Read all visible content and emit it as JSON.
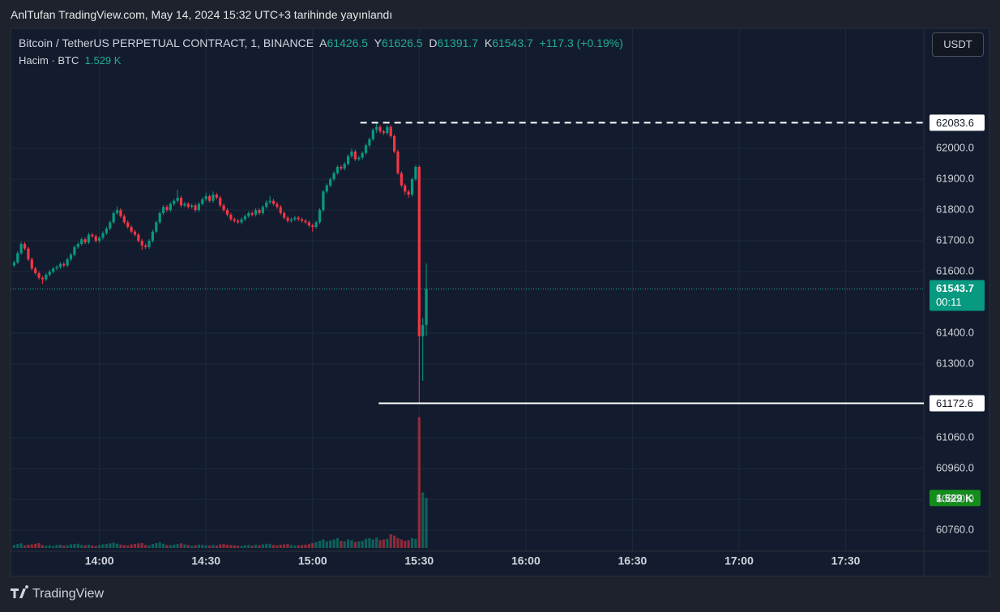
{
  "chart_data": {
    "type": "candlestick",
    "publisher_line": "AnlTufan TradingView.com, May 14, 2024 15:32 UTC+3 tarihinde yayınlandı",
    "title": "Bitcoin / TetherUS PERPETUAL CONTRACT, 1, BINANCE",
    "ohlc_letters": [
      "A",
      "Y",
      "D",
      "K"
    ],
    "change": "+117.3 (+0.19%)",
    "volume_title": "Hacim · BTC",
    "volume_last_label": "1.529 K",
    "currency": "USDT",
    "countdown": "00:11",
    "brand": "TradingView",
    "up_color": "#089981",
    "down_color": "#f23645",
    "x": [
      "13:36",
      "13:37",
      "13:38",
      "13:39",
      "13:40",
      "13:41",
      "13:42",
      "13:43",
      "13:44",
      "13:45",
      "13:46",
      "13:47",
      "13:48",
      "13:49",
      "13:50",
      "13:51",
      "13:52",
      "13:53",
      "13:54",
      "13:55",
      "13:56",
      "13:57",
      "13:58",
      "13:59",
      "14:00",
      "14:01",
      "14:02",
      "14:03",
      "14:04",
      "14:05",
      "14:06",
      "14:07",
      "14:08",
      "14:09",
      "14:10",
      "14:11",
      "14:12",
      "14:13",
      "14:14",
      "14:15",
      "14:16",
      "14:17",
      "14:18",
      "14:19",
      "14:20",
      "14:21",
      "14:22",
      "14:23",
      "14:24",
      "14:25",
      "14:26",
      "14:27",
      "14:28",
      "14:29",
      "14:30",
      "14:31",
      "14:32",
      "14:33",
      "14:34",
      "14:35",
      "14:36",
      "14:37",
      "14:38",
      "14:39",
      "14:40",
      "14:41",
      "14:42",
      "14:43",
      "14:44",
      "14:45",
      "14:46",
      "14:47",
      "14:48",
      "14:49",
      "14:50",
      "14:51",
      "14:52",
      "14:53",
      "14:54",
      "14:55",
      "14:56",
      "14:57",
      "14:58",
      "14:59",
      "15:00",
      "15:01",
      "15:02",
      "15:03",
      "15:04",
      "15:05",
      "15:06",
      "15:07",
      "15:08",
      "15:09",
      "15:10",
      "15:11",
      "15:12",
      "15:13",
      "15:14",
      "15:15",
      "15:16",
      "15:17",
      "15:18",
      "15:19",
      "15:20",
      "15:21",
      "15:22",
      "15:23",
      "15:24",
      "15:25",
      "15:26",
      "15:27",
      "15:28",
      "15:29",
      "15:30",
      "15:31",
      "15:32"
    ],
    "ohlc": [
      [
        61620,
        61636,
        61614,
        61630
      ],
      [
        61630,
        61666,
        61624,
        61660
      ],
      [
        61660,
        61696,
        61654,
        61690
      ],
      [
        61690,
        61696,
        61669,
        61675
      ],
      [
        61675,
        61681,
        61634,
        61640
      ],
      [
        61640,
        61646,
        61604,
        61610
      ],
      [
        61610,
        61616,
        61589,
        61595
      ],
      [
        61595,
        61601,
        61574,
        61580
      ],
      [
        61580,
        61586,
        61560,
        61575
      ],
      [
        61575,
        61596,
        61569,
        61590
      ],
      [
        61590,
        61606,
        61584,
        61600
      ],
      [
        61600,
        61616,
        61594,
        61610
      ],
      [
        61610,
        61621,
        61604,
        61615
      ],
      [
        61615,
        61631,
        61609,
        61625
      ],
      [
        61625,
        61631,
        61614,
        61620
      ],
      [
        61620,
        61646,
        61614,
        61640
      ],
      [
        61640,
        61661,
        61634,
        61655
      ],
      [
        61655,
        61686,
        61649,
        61680
      ],
      [
        61680,
        61696,
        61674,
        61690
      ],
      [
        61690,
        61711,
        61684,
        61705
      ],
      [
        61705,
        61711,
        61689,
        61695
      ],
      [
        61695,
        61726,
        61689,
        61720
      ],
      [
        61720,
        61726,
        61709,
        61715
      ],
      [
        61715,
        61721,
        61694,
        61700
      ],
      [
        61700,
        61716,
        61694,
        61710
      ],
      [
        61710,
        61731,
        61704,
        61725
      ],
      [
        61725,
        61746,
        61719,
        61740
      ],
      [
        61740,
        61766,
        61734,
        61760
      ],
      [
        61760,
        61796,
        61754,
        61790
      ],
      [
        61790,
        61812,
        61784,
        61800
      ],
      [
        61800,
        61806,
        61774,
        61780
      ],
      [
        61780,
        61786,
        61754,
        61760
      ],
      [
        61760,
        61766,
        61739,
        61745
      ],
      [
        61745,
        61751,
        61724,
        61730
      ],
      [
        61730,
        61736,
        61714,
        61720
      ],
      [
        61720,
        61726,
        61694,
        61700
      ],
      [
        61700,
        61706,
        61670,
        61685
      ],
      [
        61685,
        61691,
        61674,
        61680
      ],
      [
        61680,
        61706,
        61674,
        61700
      ],
      [
        61700,
        61736,
        61694,
        61730
      ],
      [
        61730,
        61766,
        61724,
        61760
      ],
      [
        61760,
        61796,
        61754,
        61790
      ],
      [
        61790,
        61816,
        61784,
        61810
      ],
      [
        61810,
        61816,
        61794,
        61800
      ],
      [
        61800,
        61826,
        61794,
        61820
      ],
      [
        61820,
        61836,
        61814,
        61830
      ],
      [
        61830,
        61866,
        61824,
        61840
      ],
      [
        61840,
        61846,
        61809,
        61815
      ],
      [
        61815,
        61826,
        61809,
        61820
      ],
      [
        61820,
        61826,
        61804,
        61810
      ],
      [
        61810,
        61821,
        61804,
        61815
      ],
      [
        61815,
        61821,
        61794,
        61800
      ],
      [
        61800,
        61826,
        61794,
        61820
      ],
      [
        61820,
        61841,
        61814,
        61835
      ],
      [
        61835,
        61856,
        61829,
        61845
      ],
      [
        61845,
        61851,
        61824,
        61830
      ],
      [
        61830,
        61860,
        61824,
        61850
      ],
      [
        61850,
        61856,
        61834,
        61840
      ],
      [
        61840,
        61846,
        61809,
        61815
      ],
      [
        61815,
        61821,
        61794,
        61800
      ],
      [
        61800,
        61806,
        61779,
        61785
      ],
      [
        61785,
        61791,
        61764,
        61770
      ],
      [
        61770,
        61776,
        61759,
        61765
      ],
      [
        61765,
        61771,
        61754,
        61760
      ],
      [
        61760,
        61776,
        61754,
        61770
      ],
      [
        61770,
        61786,
        61764,
        61780
      ],
      [
        61780,
        61796,
        61774,
        61790
      ],
      [
        61790,
        61796,
        61779,
        61785
      ],
      [
        61785,
        61806,
        61779,
        61800
      ],
      [
        61800,
        61806,
        61784,
        61790
      ],
      [
        61790,
        61816,
        61784,
        61810
      ],
      [
        61810,
        61831,
        61804,
        61825
      ],
      [
        61825,
        61846,
        61819,
        61830
      ],
      [
        61830,
        61836,
        61814,
        61820
      ],
      [
        61820,
        61826,
        61804,
        61810
      ],
      [
        61810,
        61816,
        61784,
        61790
      ],
      [
        61790,
        61796,
        61769,
        61775
      ],
      [
        61775,
        61781,
        61759,
        61765
      ],
      [
        61765,
        61776,
        61759,
        61770
      ],
      [
        61770,
        61781,
        61764,
        61775
      ],
      [
        61775,
        61781,
        61764,
        61770
      ],
      [
        61770,
        61776,
        61759,
        61765
      ],
      [
        61765,
        61771,
        61754,
        61760
      ],
      [
        61760,
        61766,
        61744,
        61750
      ],
      [
        61750,
        61756,
        61730,
        61745
      ],
      [
        61745,
        61766,
        61739,
        61760
      ],
      [
        61760,
        61806,
        61754,
        61800
      ],
      [
        61800,
        61866,
        61794,
        61860
      ],
      [
        61860,
        61886,
        61854,
        61880
      ],
      [
        61880,
        61906,
        61874,
        61900
      ],
      [
        61900,
        61926,
        61894,
        61920
      ],
      [
        61920,
        61946,
        61914,
        61940
      ],
      [
        61940,
        61946,
        61929,
        61935
      ],
      [
        61935,
        61956,
        61929,
        61950
      ],
      [
        61950,
        61981,
        61944,
        61975
      ],
      [
        61975,
        62000,
        61969,
        61990
      ],
      [
        61990,
        61996,
        61959,
        61965
      ],
      [
        61965,
        61976,
        61959,
        61970
      ],
      [
        61970,
        61991,
        61964,
        61985
      ],
      [
        61985,
        62016,
        61979,
        62010
      ],
      [
        62010,
        62036,
        62004,
        62030
      ],
      [
        62030,
        62066,
        62024,
        62060
      ],
      [
        62060,
        62083.6,
        62050,
        62070
      ],
      [
        62070,
        62076,
        62049,
        62055
      ],
      [
        62055,
        62061,
        62044,
        62050
      ],
      [
        62050,
        62076,
        62044,
        62070
      ],
      [
        62070,
        62076,
        62034,
        62040
      ],
      [
        62040,
        62046,
        61984,
        61990
      ],
      [
        61990,
        61996,
        61914,
        61920
      ],
      [
        61920,
        61926,
        61874,
        61880
      ],
      [
        61880,
        61886,
        61850,
        61860
      ],
      [
        61860,
        61866,
        61840,
        61850
      ],
      [
        61850,
        61906,
        61844,
        61900
      ],
      [
        61900,
        61946,
        61894,
        61940
      ],
      [
        61940,
        61945,
        61172.6,
        61390
      ],
      [
        61390,
        61450,
        61245,
        61426.5
      ],
      [
        61426.5,
        61626.5,
        61391.7,
        61543.7
      ]
    ],
    "volume": [
      90,
      120,
      140,
      80,
      100,
      110,
      130,
      150,
      90,
      70,
      80,
      60,
      90,
      100,
      70,
      80,
      110,
      120,
      130,
      90,
      80,
      100,
      70,
      60,
      90,
      110,
      120,
      140,
      160,
      130,
      100,
      90,
      80,
      110,
      120,
      140,
      150,
      90,
      80,
      120,
      150,
      170,
      130,
      90,
      80,
      100,
      120,
      140,
      110,
      90,
      70,
      80,
      100,
      90,
      80,
      70,
      90,
      80,
      110,
      120,
      100,
      90,
      80,
      70,
      60,
      80,
      90,
      70,
      100,
      80,
      110,
      130,
      120,
      90,
      80,
      100,
      110,
      120,
      90,
      70,
      80,
      90,
      100,
      120,
      150,
      180,
      220,
      260,
      200,
      230,
      260,
      300,
      220,
      200,
      260,
      240,
      180,
      200,
      220,
      280,
      300,
      260,
      320,
      240,
      260,
      280,
      420,
      380,
      300,
      260,
      220,
      240,
      300,
      280,
      4000,
      1700,
      1529
    ],
    "volume_lim": [
      0,
      16000
    ],
    "xlim": [
      "13:35",
      "17:52"
    ],
    "xticks": [
      "14:00",
      "14:30",
      "15:00",
      "15:30",
      "16:00",
      "16:30",
      "17:00",
      "17:30"
    ],
    "ylim": [
      60692,
      62390
    ],
    "yticks": [
      {
        "value": 60760,
        "label": "60760.0"
      },
      {
        "value": 60860,
        "label": "60860.0"
      },
      {
        "value": 60960,
        "label": "60960.0"
      },
      {
        "value": 61060,
        "label": "61060.0"
      },
      {
        "value": 61300,
        "label": "61300.0"
      },
      {
        "value": 61400,
        "label": "61400.0"
      },
      {
        "value": 61600,
        "label": "61600.0"
      },
      {
        "value": 61700,
        "label": "61700.0"
      },
      {
        "value": 61800,
        "label": "61800.0"
      },
      {
        "value": 61900,
        "label": "61900.0"
      },
      {
        "value": 62000,
        "label": "62000.0"
      }
    ],
    "grid": true
  }
}
